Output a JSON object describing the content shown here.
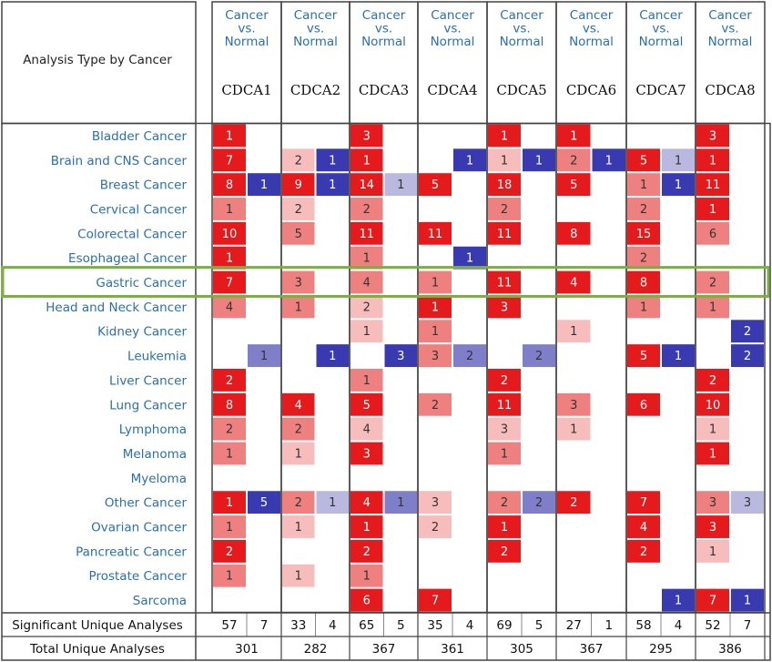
{
  "chart_data": {
    "type": "heatmap",
    "header_label": "Analysis Type by Cancer",
    "comparison_label": [
      "Cancer",
      "vs.",
      "Normal"
    ],
    "genes": [
      "CDCA1",
      "CDCA2",
      "CDCA3",
      "CDCA4",
      "CDCA5",
      "CDCA6",
      "CDCA7",
      "CDCA8"
    ],
    "cancer_types": [
      "Bladder Cancer",
      "Brain and CNS Cancer",
      "Breast Cancer",
      "Cervical Cancer",
      "Colorectal Cancer",
      "Esophageal Cancer",
      "Gastric Cancer",
      "Head and Neck Cancer",
      "Kidney Cancer",
      "Leukemia",
      "Liver Cancer",
      "Lung Cancer",
      "Lymphoma",
      "Melanoma",
      "Myeloma",
      "Other Cancer",
      "Ovarian Cancer",
      "Pancreatic Cancer",
      "Prostate Cancer",
      "Sarcoma"
    ],
    "highlighted_row": "Gastric Cancer",
    "up_counts": [
      [
        1,
        null,
        3,
        null,
        1,
        1,
        null,
        3
      ],
      [
        7,
        2,
        1,
        null,
        1,
        2,
        5,
        1
      ],
      [
        8,
        9,
        14,
        5,
        18,
        5,
        1,
        11
      ],
      [
        1,
        2,
        2,
        null,
        2,
        null,
        2,
        1
      ],
      [
        10,
        5,
        11,
        11,
        11,
        8,
        15,
        6
      ],
      [
        1,
        null,
        1,
        null,
        null,
        null,
        2,
        null
      ],
      [
        7,
        3,
        4,
        1,
        11,
        4,
        8,
        2
      ],
      [
        4,
        1,
        2,
        1,
        3,
        null,
        1,
        1
      ],
      [
        null,
        null,
        1,
        1,
        null,
        1,
        null,
        null
      ],
      [
        null,
        null,
        null,
        3,
        null,
        null,
        5,
        null
      ],
      [
        2,
        null,
        1,
        null,
        2,
        null,
        null,
        2
      ],
      [
        8,
        4,
        5,
        2,
        11,
        3,
        6,
        10
      ],
      [
        2,
        2,
        4,
        null,
        3,
        1,
        null,
        1
      ],
      [
        1,
        1,
        3,
        null,
        1,
        null,
        null,
        1
      ],
      [
        null,
        null,
        null,
        null,
        null,
        null,
        null,
        null
      ],
      [
        1,
        2,
        4,
        3,
        2,
        2,
        7,
        3
      ],
      [
        1,
        1,
        1,
        2,
        1,
        null,
        4,
        3
      ],
      [
        2,
        null,
        2,
        null,
        2,
        null,
        2,
        1
      ],
      [
        1,
        1,
        1,
        null,
        null,
        null,
        null,
        null
      ],
      [
        null,
        null,
        6,
        7,
        null,
        null,
        null,
        7
      ]
    ],
    "up_shades": [
      [
        3,
        null,
        3,
        null,
        3,
        3,
        null,
        3
      ],
      [
        3,
        1,
        3,
        null,
        1,
        2,
        3,
        3
      ],
      [
        3,
        3,
        3,
        3,
        3,
        3,
        2,
        3
      ],
      [
        2,
        1,
        2,
        null,
        2,
        null,
        2,
        3
      ],
      [
        3,
        2,
        3,
        3,
        3,
        3,
        3,
        2
      ],
      [
        3,
        null,
        2,
        null,
        null,
        null,
        2,
        null
      ],
      [
        3,
        2,
        2,
        2,
        3,
        3,
        3,
        2
      ],
      [
        2,
        2,
        1,
        3,
        3,
        null,
        2,
        2
      ],
      [
        null,
        null,
        1,
        2,
        null,
        1,
        null,
        null
      ],
      [
        null,
        null,
        null,
        2,
        null,
        null,
        3,
        null
      ],
      [
        3,
        null,
        2,
        null,
        3,
        null,
        null,
        3
      ],
      [
        3,
        3,
        3,
        2,
        3,
        2,
        3,
        3
      ],
      [
        2,
        2,
        1,
        null,
        1,
        1,
        null,
        1
      ],
      [
        2,
        1,
        3,
        null,
        2,
        null,
        null,
        3
      ],
      [
        null,
        null,
        null,
        null,
        null,
        null,
        null,
        null
      ],
      [
        3,
        2,
        3,
        1,
        2,
        3,
        3,
        2
      ],
      [
        2,
        1,
        3,
        1,
        3,
        null,
        3,
        3
      ],
      [
        3,
        null,
        3,
        null,
        3,
        null,
        3,
        1
      ],
      [
        2,
        1,
        2,
        null,
        null,
        null,
        null,
        null
      ],
      [
        null,
        null,
        3,
        3,
        null,
        null,
        null,
        3
      ]
    ],
    "down_counts": [
      [
        null,
        null,
        null,
        null,
        null,
        null,
        null,
        null
      ],
      [
        null,
        1,
        null,
        1,
        1,
        1,
        1,
        null
      ],
      [
        1,
        1,
        1,
        null,
        null,
        null,
        1,
        null
      ],
      [
        null,
        null,
        null,
        null,
        null,
        null,
        null,
        null
      ],
      [
        null,
        null,
        null,
        null,
        null,
        null,
        null,
        null
      ],
      [
        null,
        null,
        null,
        1,
        null,
        null,
        null,
        null
      ],
      [
        null,
        null,
        null,
        null,
        null,
        null,
        null,
        null
      ],
      [
        null,
        null,
        null,
        null,
        null,
        null,
        null,
        null
      ],
      [
        null,
        null,
        null,
        null,
        null,
        null,
        null,
        2
      ],
      [
        1,
        1,
        3,
        2,
        2,
        null,
        1,
        2
      ],
      [
        null,
        null,
        null,
        null,
        null,
        null,
        null,
        null
      ],
      [
        null,
        null,
        null,
        null,
        null,
        null,
        null,
        null
      ],
      [
        null,
        null,
        null,
        null,
        null,
        null,
        null,
        null
      ],
      [
        null,
        null,
        null,
        null,
        null,
        null,
        null,
        null
      ],
      [
        null,
        null,
        null,
        null,
        null,
        null,
        null,
        null
      ],
      [
        5,
        1,
        1,
        null,
        2,
        null,
        null,
        3
      ],
      [
        null,
        null,
        null,
        null,
        null,
        null,
        null,
        null
      ],
      [
        null,
        null,
        null,
        null,
        null,
        null,
        null,
        null
      ],
      [
        null,
        null,
        null,
        null,
        null,
        null,
        null,
        null
      ],
      [
        null,
        null,
        null,
        null,
        null,
        null,
        1,
        1
      ]
    ],
    "down_shades": [
      [
        null,
        null,
        null,
        null,
        null,
        null,
        null,
        null
      ],
      [
        null,
        3,
        null,
        3,
        3,
        3,
        1,
        null
      ],
      [
        3,
        3,
        1,
        null,
        null,
        null,
        3,
        null
      ],
      [
        null,
        null,
        null,
        null,
        null,
        null,
        null,
        null
      ],
      [
        null,
        null,
        null,
        null,
        null,
        null,
        null,
        null
      ],
      [
        null,
        null,
        null,
        3,
        null,
        null,
        null,
        null
      ],
      [
        null,
        null,
        null,
        null,
        null,
        null,
        null,
        null
      ],
      [
        null,
        null,
        null,
        null,
        null,
        null,
        null,
        null
      ],
      [
        null,
        null,
        null,
        null,
        null,
        null,
        null,
        3
      ],
      [
        2,
        3,
        3,
        2,
        2,
        null,
        3,
        3
      ],
      [
        null,
        null,
        null,
        null,
        null,
        null,
        null,
        null
      ],
      [
        null,
        null,
        null,
        null,
        null,
        null,
        null,
        null
      ],
      [
        null,
        null,
        null,
        null,
        null,
        null,
        null,
        null
      ],
      [
        null,
        null,
        null,
        null,
        null,
        null,
        null,
        null
      ],
      [
        null,
        null,
        null,
        null,
        null,
        null,
        null,
        null
      ],
      [
        3,
        1,
        2,
        null,
        2,
        null,
        null,
        1
      ],
      [
        null,
        null,
        null,
        null,
        null,
        null,
        null,
        null
      ],
      [
        null,
        null,
        null,
        null,
        null,
        null,
        null,
        null
      ],
      [
        null,
        null,
        null,
        null,
        null,
        null,
        null,
        null
      ],
      [
        null,
        null,
        null,
        null,
        null,
        null,
        3,
        3
      ]
    ],
    "significant_label": "Significant Unique Analyses",
    "significant_up": [
      57,
      33,
      65,
      35,
      69,
      27,
      58,
      52
    ],
    "significant_down": [
      7,
      4,
      5,
      4,
      5,
      1,
      4,
      7
    ],
    "total_label": "Total Unique Analyses",
    "total": [
      301,
      282,
      367,
      361,
      305,
      367,
      295,
      386
    ]
  },
  "colors": {
    "up": [
      "#f7bcbc",
      "#ef8080",
      "#e41a1c"
    ],
    "down": [
      "#b9b9e0",
      "#7f7fc9",
      "#3a3ab0"
    ],
    "label_blue": "#2a6fb0",
    "grid_line": "#444444",
    "highlight": "#7ab040"
  }
}
